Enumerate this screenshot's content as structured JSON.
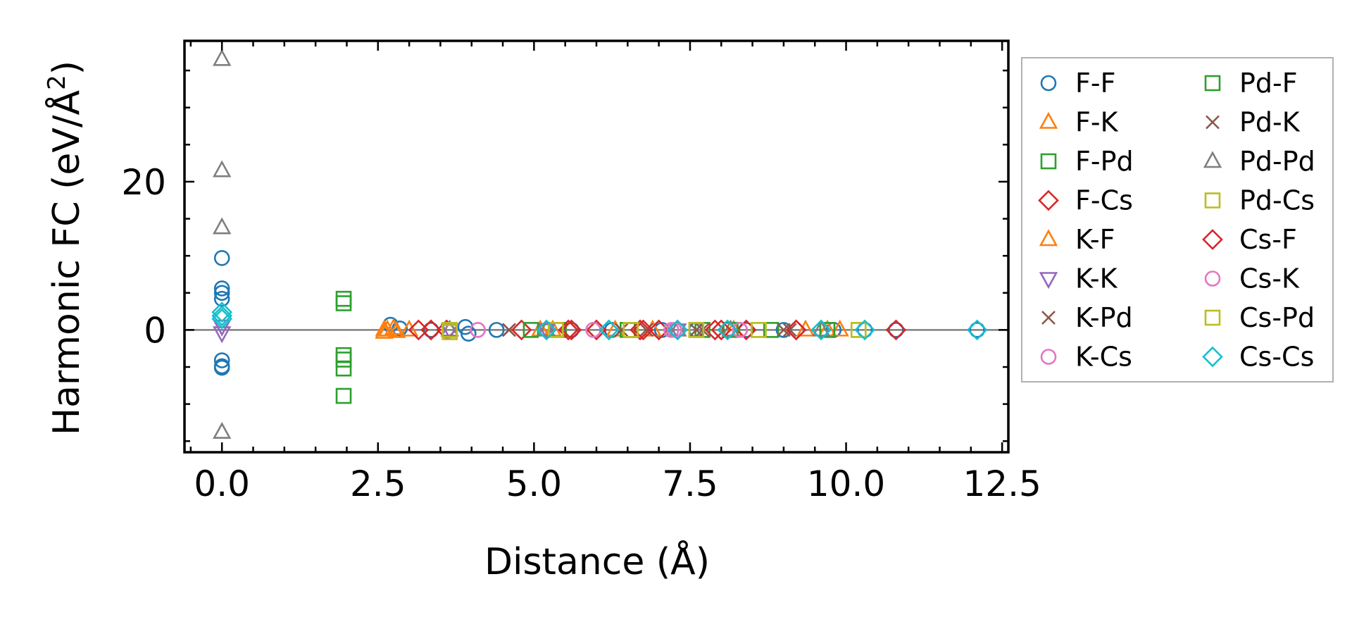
{
  "chart_data": {
    "type": "scatter",
    "title": "",
    "xlabel": "Distance (Å)",
    "ylabel_main": "Harmonic FC (eV/Å",
    "ylabel_sup": "2",
    "ylabel_close": ")",
    "xlim": [
      -0.6,
      12.6
    ],
    "ylim": [
      -16.5,
      39
    ],
    "xticks": [
      0.0,
      2.5,
      5.0,
      7.5,
      10.0,
      12.5
    ],
    "xtick_labels": [
      "0.0",
      "2.5",
      "5.0",
      "7.5",
      "10.0",
      "12.5"
    ],
    "yticks": [
      0,
      20
    ],
    "ytick_labels": [
      "0",
      "20"
    ],
    "x_minor_step": 0.5,
    "y_minor_step": 5,
    "zero_line": true,
    "grid": false,
    "legend_position": "outside-right",
    "series": [
      {
        "name": "F-F",
        "marker": "circle",
        "color": "#1f77b4",
        "points": [
          [
            0,
            9.7
          ],
          [
            0,
            5.6
          ],
          [
            0,
            5.0
          ],
          [
            0,
            4.2
          ],
          [
            0,
            -4.1
          ],
          [
            0,
            -4.9
          ],
          [
            0,
            -5.1
          ],
          [
            2.7,
            0.7
          ],
          [
            2.85,
            0.2
          ],
          [
            3.35,
            0
          ],
          [
            3.9,
            0.4
          ],
          [
            3.95,
            -0.5
          ],
          [
            4.4,
            0
          ],
          [
            5.6,
            0
          ],
          [
            6.25,
            0
          ],
          [
            7.05,
            0
          ],
          [
            7.6,
            0
          ],
          [
            8.4,
            0
          ],
          [
            9.0,
            0
          ],
          [
            9.8,
            0
          ],
          [
            10.3,
            0
          ],
          [
            10.8,
            0
          ],
          [
            12.1,
            0
          ]
        ]
      },
      {
        "name": "F-K",
        "marker": "triangle-up",
        "color": "#ff7f0e",
        "points": [
          [
            2.6,
            -0.3
          ],
          [
            2.65,
            0
          ],
          [
            2.75,
            0.2
          ],
          [
            3.0,
            0
          ],
          [
            5.3,
            0
          ],
          [
            6.3,
            0
          ],
          [
            6.9,
            0
          ],
          [
            8.2,
            0
          ],
          [
            9.35,
            0
          ],
          [
            9.9,
            0
          ]
        ]
      },
      {
        "name": "F-Pd",
        "marker": "square",
        "color": "#2ca02c",
        "points": [
          [
            1.95,
            4.2
          ],
          [
            1.95,
            3.6
          ],
          [
            1.95,
            -3.4
          ],
          [
            1.95,
            -4.0
          ],
          [
            1.95,
            -5.2
          ],
          [
            1.95,
            -8.9
          ],
          [
            5.4,
            0
          ],
          [
            6.5,
            0
          ],
          [
            7.7,
            0
          ],
          [
            8.8,
            0
          ]
        ]
      },
      {
        "name": "F-Cs",
        "marker": "diamond",
        "color": "#d62728",
        "points": [
          [
            3.15,
            0
          ],
          [
            3.35,
            0
          ],
          [
            3.6,
            0
          ],
          [
            4.8,
            0
          ],
          [
            5.55,
            0
          ],
          [
            6.0,
            0
          ],
          [
            6.7,
            0
          ],
          [
            7.0,
            0
          ],
          [
            7.9,
            0
          ],
          [
            8.4,
            0
          ],
          [
            9.2,
            0
          ],
          [
            10.8,
            0
          ]
        ]
      },
      {
        "name": "K-F",
        "marker": "triangle-up",
        "color": "#ff7f0e",
        "points": [
          [
            2.6,
            0
          ],
          [
            2.8,
            -0.2
          ],
          [
            5.1,
            0
          ],
          [
            7.3,
            0
          ],
          [
            9.7,
            0
          ]
        ]
      },
      {
        "name": "K-K",
        "marker": "triangle-down",
        "color": "#9467bd",
        "points": [
          [
            0,
            -0.4
          ],
          [
            0,
            0.5
          ],
          [
            3.65,
            0
          ],
          [
            5.2,
            0
          ],
          [
            7.3,
            0
          ]
        ]
      },
      {
        "name": "K-Pd",
        "marker": "x",
        "color": "#8c564b",
        "points": [
          [
            4.6,
            0
          ],
          [
            6.8,
            0
          ],
          [
            7.6,
            0
          ],
          [
            9.0,
            0
          ]
        ]
      },
      {
        "name": "K-Cs",
        "marker": "circle",
        "color": "#e377c2",
        "points": [
          [
            4.1,
            0
          ],
          [
            5.95,
            0
          ],
          [
            7.2,
            0
          ],
          [
            8.3,
            0
          ]
        ]
      },
      {
        "name": "Pd-F",
        "marker": "square",
        "color": "#2ca02c",
        "points": [
          [
            4.95,
            0
          ],
          [
            6.55,
            0
          ],
          [
            8.15,
            0
          ],
          [
            9.7,
            0
          ]
        ]
      },
      {
        "name": "Pd-K",
        "marker": "x",
        "color": "#8c564b",
        "points": [
          [
            4.6,
            0
          ],
          [
            6.4,
            0
          ],
          [
            7.7,
            0
          ],
          [
            9.1,
            0
          ]
        ]
      },
      {
        "name": "Pd-Pd",
        "marker": "triangle-up",
        "color": "#7f7f7f",
        "points": [
          [
            0,
            36.5
          ],
          [
            0,
            21.5
          ],
          [
            0,
            13.8
          ],
          [
            0,
            -13.8
          ],
          [
            3.65,
            0
          ],
          [
            5.2,
            0
          ],
          [
            7.3,
            0
          ],
          [
            8.15,
            0
          ],
          [
            9.6,
            0
          ]
        ]
      },
      {
        "name": "Pd-Cs",
        "marker": "square",
        "color": "#bcbd22",
        "points": [
          [
            3.65,
            0
          ],
          [
            5.35,
            0
          ],
          [
            6.55,
            0
          ],
          [
            7.6,
            0
          ],
          [
            8.6,
            0
          ],
          [
            10.2,
            0
          ]
        ]
      },
      {
        "name": "Cs-F",
        "marker": "diamond",
        "color": "#d62728",
        "points": [
          [
            3.35,
            0
          ],
          [
            5.6,
            0
          ],
          [
            6.75,
            0
          ],
          [
            8.0,
            0
          ],
          [
            9.2,
            0
          ]
        ]
      },
      {
        "name": "Cs-K",
        "marker": "circle",
        "color": "#e377c2",
        "points": [
          [
            4.1,
            0
          ],
          [
            5.95,
            0
          ],
          [
            7.25,
            0
          ],
          [
            8.3,
            0
          ]
        ]
      },
      {
        "name": "Cs-Pd",
        "marker": "square",
        "color": "#bcbd22",
        "points": [
          [
            3.65,
            0
          ],
          [
            3.65,
            -0.3
          ],
          [
            5.35,
            0
          ],
          [
            6.55,
            0
          ],
          [
            7.6,
            0
          ],
          [
            8.6,
            0
          ],
          [
            10.2,
            0
          ]
        ]
      },
      {
        "name": "Cs-Cs",
        "marker": "diamond",
        "color": "#17becf",
        "points": [
          [
            0,
            1.9
          ],
          [
            0,
            2.4
          ],
          [
            0,
            1.5
          ],
          [
            5.2,
            0
          ],
          [
            6.2,
            0
          ],
          [
            7.3,
            0
          ],
          [
            8.1,
            0
          ],
          [
            9.6,
            0
          ],
          [
            10.3,
            0
          ],
          [
            12.1,
            0
          ]
        ]
      }
    ]
  }
}
